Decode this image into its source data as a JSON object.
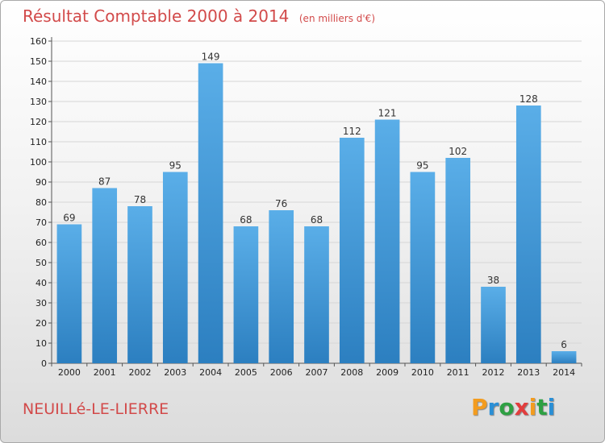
{
  "header": {
    "title": "Résultat Comptable 2000 à 2014",
    "subtitle": "(en milliers d'€)"
  },
  "footer": {
    "commune": "NEUILLé-LE-LIERRE",
    "logo_letters": [
      "P",
      "r",
      "o",
      "x",
      "i",
      "t",
      "i"
    ],
    "logo_colors": [
      "#f39c1f",
      "#2a8fd6",
      "#2ea043",
      "#e23d3d",
      "#f39c1f",
      "#2ea043",
      "#2a8fd6"
    ]
  },
  "chart_data": {
    "type": "bar",
    "categories": [
      "2000",
      "2001",
      "2002",
      "2003",
      "2004",
      "2005",
      "2006",
      "2007",
      "2008",
      "2009",
      "2010",
      "2011",
      "2012",
      "2013",
      "2014"
    ],
    "values": [
      69,
      87,
      78,
      95,
      149,
      68,
      76,
      68,
      112,
      121,
      95,
      102,
      38,
      128,
      6
    ],
    "value_labels": [
      "69",
      "87",
      "78",
      "95",
      "149",
      "68",
      "76",
      "68",
      "112",
      "121",
      "95",
      "102",
      "38",
      "128",
      "6"
    ],
    "y_ticks": [
      "0",
      "10",
      "20",
      "30",
      "40",
      "50",
      "60",
      "70",
      "80",
      "90",
      "100",
      "110",
      "120",
      "130",
      "140",
      "150",
      "160"
    ],
    "ylim": [
      0,
      160
    ],
    "grid": true,
    "bar_color_top": "#5aaee8",
    "bar_color_bottom": "#2c7fc0"
  }
}
